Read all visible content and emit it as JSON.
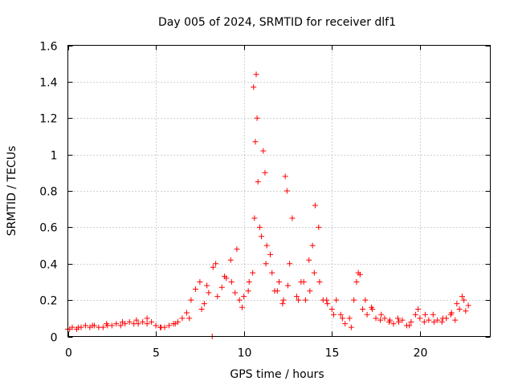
{
  "chart_data": {
    "type": "scatter",
    "title": "Day 005 of 2024, SRMTID for receiver dlf1",
    "xlabel": "GPS time / hours",
    "ylabel": "SRMTID / TECUs",
    "xlim": [
      0,
      24
    ],
    "ylim": [
      0,
      1.6
    ],
    "x_ticks": [
      "0",
      "5",
      "10",
      "15",
      "20"
    ],
    "x_tick_values": [
      0,
      5,
      10,
      15,
      20
    ],
    "y_ticks": [
      "0",
      "0.2",
      "0.4",
      "0.6",
      "0.8",
      "1",
      "1.2",
      "1.4",
      "1.6"
    ],
    "y_tick_values": [
      0,
      0.2,
      0.4,
      0.6,
      0.8,
      1.0,
      1.2,
      1.4,
      1.6
    ],
    "grid": true,
    "marker": "plus",
    "color": "#ff0000",
    "series": [
      {
        "name": "dlf1",
        "x": [
          0.0,
          0.25,
          0.5,
          0.75,
          1.0,
          1.25,
          1.5,
          1.75,
          2.0,
          2.25,
          2.5,
          2.75,
          3.0,
          3.25,
          3.5,
          3.75,
          4.0,
          4.25,
          4.5,
          4.75,
          5.0,
          5.25,
          5.5,
          5.75,
          6.0,
          6.25,
          6.5,
          6.75,
          7.0,
          7.25,
          7.5,
          7.75,
          8.0,
          8.25,
          8.5,
          8.75,
          9.0,
          9.25,
          9.5,
          9.75,
          10.0,
          10.25,
          10.5,
          10.6,
          10.7,
          10.75,
          11.0,
          11.2,
          11.25,
          11.5,
          11.75,
          12.0,
          12.25,
          12.5,
          12.75,
          13.0,
          13.25,
          13.5,
          13.75,
          14.0,
          14.25,
          14.5,
          14.75,
          15.0,
          15.25,
          15.5,
          15.75,
          16.0,
          16.25,
          16.5,
          16.75,
          17.0,
          17.25,
          17.5,
          17.75,
          18.0,
          18.25,
          18.5,
          18.75,
          19.0,
          19.25,
          19.5,
          19.75,
          20.0,
          20.25,
          20.5,
          20.75,
          21.0,
          21.25,
          21.5,
          21.75,
          22.0,
          22.25,
          22.5,
          22.75,
          0.1,
          0.6,
          1.4,
          2.2,
          3.1,
          3.9,
          4.5,
          5.3,
          6.1,
          6.9,
          7.6,
          7.9,
          8.4,
          8.9,
          9.3,
          9.6,
          9.9,
          10.3,
          10.55,
          10.65,
          10.8,
          10.9,
          11.1,
          11.3,
          11.6,
          11.9,
          12.2,
          12.35,
          12.45,
          12.6,
          13.1,
          13.4,
          13.7,
          13.9,
          14.05,
          14.3,
          14.7,
          15.1,
          15.6,
          16.1,
          16.4,
          16.6,
          16.9,
          17.3,
          17.8,
          18.3,
          18.8,
          19.4,
          19.9,
          20.3,
          20.8,
          21.3,
          21.8,
          22.1,
          22.4,
          22.6,
          8.2
        ],
        "y": [
          0.04,
          0.05,
          0.04,
          0.05,
          0.06,
          0.05,
          0.06,
          0.05,
          0.05,
          0.06,
          0.06,
          0.07,
          0.06,
          0.07,
          0.08,
          0.07,
          0.07,
          0.08,
          0.07,
          0.08,
          0.06,
          0.05,
          0.05,
          0.06,
          0.07,
          0.08,
          0.1,
          0.13,
          0.2,
          0.26,
          0.3,
          0.18,
          0.24,
          0.38,
          0.22,
          0.27,
          0.32,
          0.42,
          0.24,
          0.2,
          0.22,
          0.25,
          0.35,
          0.65,
          1.44,
          1.2,
          0.55,
          0.9,
          0.4,
          0.45,
          0.25,
          0.3,
          0.2,
          0.28,
          0.65,
          0.22,
          0.3,
          0.2,
          0.25,
          0.35,
          0.6,
          0.2,
          0.18,
          0.15,
          0.2,
          0.12,
          0.07,
          0.1,
          0.2,
          0.35,
          0.15,
          0.12,
          0.16,
          0.1,
          0.09,
          0.1,
          0.08,
          0.07,
          0.1,
          0.09,
          0.06,
          0.08,
          0.12,
          0.1,
          0.08,
          0.09,
          0.12,
          0.09,
          0.08,
          0.1,
          0.12,
          0.09,
          0.15,
          0.2,
          0.17,
          0.04,
          0.05,
          0.06,
          0.07,
          0.08,
          0.09,
          0.1,
          0.05,
          0.07,
          0.1,
          0.15,
          0.28,
          0.4,
          0.33,
          0.3,
          0.48,
          0.16,
          0.3,
          1.37,
          1.07,
          0.85,
          0.6,
          1.02,
          0.5,
          0.35,
          0.25,
          0.18,
          0.88,
          0.8,
          0.4,
          0.2,
          0.3,
          0.42,
          0.5,
          0.72,
          0.3,
          0.2,
          0.12,
          0.1,
          0.05,
          0.3,
          0.34,
          0.2,
          0.15,
          0.12,
          0.09,
          0.08,
          0.06,
          0.15,
          0.12,
          0.08,
          0.1,
          0.13,
          0.18,
          0.22,
          0.14,
          0.0
        ]
      }
    ]
  }
}
